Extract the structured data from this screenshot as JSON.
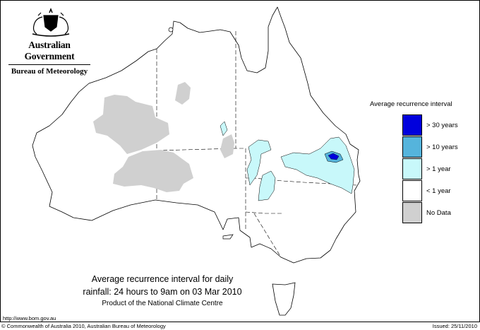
{
  "header": {
    "government": "Australian Government",
    "bureau": "Bureau of Meteorology",
    "crest_icon": "commonwealth-coat-of-arms-icon"
  },
  "map": {
    "title_line1": "Average recurrence interval for daily",
    "title_line2": "rainfall: 24 hours to 9am on 03 Mar 2010",
    "product": "Product of the National Climate Centre"
  },
  "legend": {
    "title": "Average recurrence interval",
    "items": [
      {
        "label": "> 30 years",
        "color": "#0000dd"
      },
      {
        "label": "> 10 years",
        "color": "#55b4dc"
      },
      {
        "label": "> 1 year",
        "color": "#c8f8fa"
      },
      {
        "label": "< 1 year",
        "color": "#ffffff"
      },
      {
        "label": "No Data",
        "color": "#d0d0d0"
      }
    ]
  },
  "footer": {
    "url": "http://www.bom.gov.au",
    "copyright": "© Commonwealth of Australia 2010, Australian Bureau of Meteorology",
    "issued": "Issued: 25/11/2010"
  }
}
